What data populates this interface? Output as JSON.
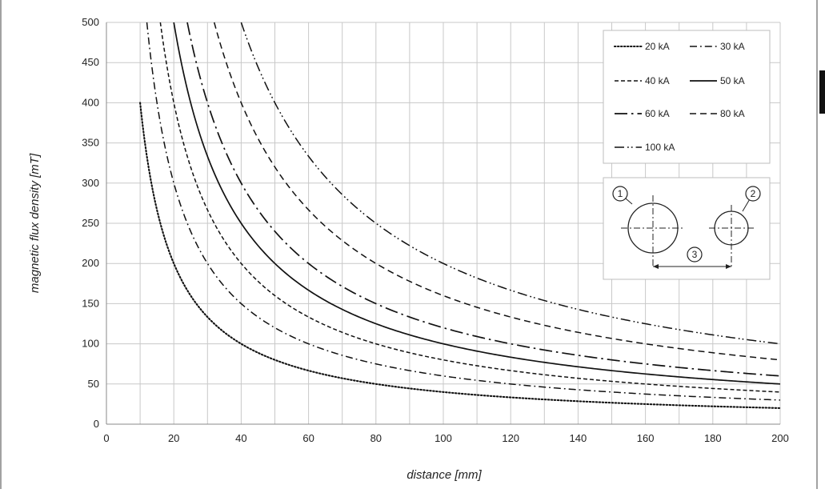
{
  "chart_data": {
    "type": "line",
    "xlabel": "distance [mm]",
    "ylabel": "magnetic flux density [mT]",
    "xlim": [
      0,
      200
    ],
    "ylim": [
      0,
      500
    ],
    "x_ticks": [
      0,
      20,
      40,
      60,
      80,
      100,
      120,
      140,
      160,
      180,
      200
    ],
    "y_ticks": [
      0,
      50,
      100,
      150,
      200,
      250,
      300,
      350,
      400,
      450,
      500
    ],
    "grid": "vertical every 10, horizontal every 50",
    "legend_position": "top-right",
    "series": [
      {
        "name": "20 kA",
        "style": "dotted",
        "x": [
          10,
          20,
          40,
          60,
          80,
          100,
          120,
          140,
          160,
          180,
          200
        ],
        "values": [
          400,
          200,
          100,
          66.7,
          50,
          40,
          33.3,
          28.6,
          25,
          22.2,
          20
        ]
      },
      {
        "name": "30 kA",
        "style": "dash-dot",
        "x": [
          12,
          20,
          40,
          60,
          80,
          100,
          120,
          140,
          160,
          180,
          200
        ],
        "values": [
          500,
          300,
          150,
          100,
          75,
          60,
          50,
          42.9,
          37.5,
          33.3,
          30
        ]
      },
      {
        "name": "40 kA",
        "style": "short-dash",
        "x": [
          16,
          20,
          40,
          60,
          80,
          100,
          120,
          140,
          160,
          180,
          200
        ],
        "values": [
          500,
          400,
          200,
          133.3,
          100,
          80,
          66.7,
          57.1,
          50,
          44.4,
          40
        ]
      },
      {
        "name": "50 kA",
        "style": "solid",
        "x": [
          20,
          40,
          60,
          80,
          100,
          120,
          140,
          160,
          180,
          200
        ],
        "values": [
          500,
          250,
          166.7,
          125,
          100,
          83.3,
          71.4,
          62.5,
          55.6,
          50
        ]
      },
      {
        "name": "60 kA",
        "style": "long-dash-dot",
        "x": [
          24,
          40,
          60,
          80,
          100,
          120,
          140,
          160,
          180,
          200
        ],
        "values": [
          500,
          300,
          200,
          150,
          120,
          100,
          85.7,
          75,
          66.7,
          60
        ]
      },
      {
        "name": "80 kA",
        "style": "dash",
        "x": [
          32,
          40,
          60,
          80,
          100,
          120,
          140,
          160,
          180,
          200
        ],
        "values": [
          500,
          400,
          266.7,
          200,
          160,
          133.3,
          114.3,
          100,
          88.9,
          80
        ]
      },
      {
        "name": "100 kA",
        "style": "dash-dot-dot",
        "x": [
          40,
          60,
          80,
          100,
          120,
          140,
          160,
          180,
          200
        ],
        "values": [
          500,
          333.3,
          250,
          200,
          166.7,
          142.9,
          125,
          111.1,
          100
        ]
      }
    ],
    "inset": {
      "callouts": [
        "1",
        "2",
        "3"
      ]
    }
  }
}
